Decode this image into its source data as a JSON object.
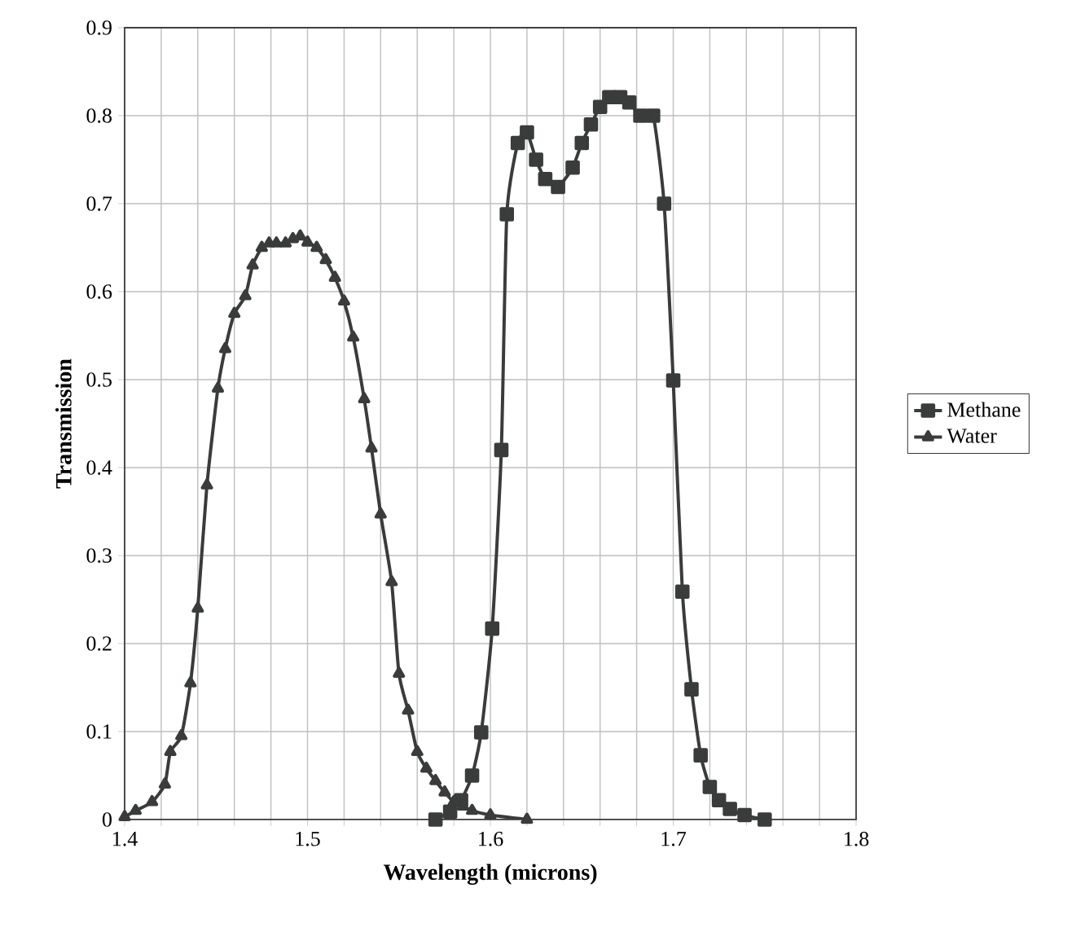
{
  "chart_data": {
    "type": "line",
    "xlabel": "Wavelength (microns)",
    "ylabel": "Transmission",
    "xlim": [
      1.4,
      1.8
    ],
    "ylim": [
      0,
      0.9
    ],
    "xticks": [
      1.4,
      {
        "value": 1.42,
        "label": null
      },
      {
        "value": 1.44,
        "label": null
      },
      {
        "value": 1.46,
        "label": null
      },
      {
        "value": 1.48,
        "label": null
      },
      1.5,
      {
        "value": 1.52,
        "label": null
      },
      {
        "value": 1.54,
        "label": null
      },
      {
        "value": 1.56,
        "label": null
      },
      {
        "value": 1.58,
        "label": null
      },
      1.6,
      {
        "value": 1.62,
        "label": null
      },
      {
        "value": 1.64,
        "label": null
      },
      {
        "value": 1.66,
        "label": null
      },
      {
        "value": 1.68,
        "label": null
      },
      1.7,
      {
        "value": 1.72,
        "label": null
      },
      {
        "value": 1.74,
        "label": null
      },
      {
        "value": 1.76,
        "label": null
      },
      {
        "value": 1.78,
        "label": null
      },
      1.8
    ],
    "yticks": [
      0,
      0.1,
      0.2,
      0.3,
      0.4,
      0.5,
      0.6,
      0.7,
      0.8,
      0.9
    ],
    "grid": true,
    "legend": "right",
    "line_style": "solid",
    "series": [
      {
        "name": "Methane",
        "color": "#3a3c3c",
        "marker": "square",
        "x": [
          1.57,
          1.578,
          1.584,
          1.59,
          1.595,
          1.601,
          1.606,
          1.609,
          1.615,
          1.62,
          1.625,
          1.63,
          1.637,
          1.645,
          1.65,
          1.655,
          1.66,
          1.665,
          1.671,
          1.676,
          1.682,
          1.689,
          1.695,
          1.7,
          1.705,
          1.71,
          1.715,
          1.72,
          1.725,
          1.731,
          1.739,
          1.75
        ],
        "values": [
          0.0,
          0.009,
          0.022,
          0.05,
          0.099,
          0.217,
          0.42,
          0.688,
          0.769,
          0.781,
          0.75,
          0.728,
          0.719,
          0.741,
          0.769,
          0.79,
          0.81,
          0.821,
          0.821,
          0.815,
          0.8,
          0.8,
          0.7,
          0.499,
          0.259,
          0.148,
          0.073,
          0.037,
          0.022,
          0.012,
          0.005,
          0.0
        ]
      },
      {
        "name": "Water",
        "color": "#3a3c3c",
        "marker": "triangle",
        "x": [
          1.4,
          1.406,
          1.415,
          1.422,
          1.425,
          1.431,
          1.436,
          1.44,
          1.445,
          1.451,
          1.455,
          1.46,
          1.466,
          1.47,
          1.475,
          1.479,
          1.483,
          1.488,
          1.492,
          1.496,
          1.5,
          1.505,
          1.51,
          1.515,
          1.52,
          1.525,
          1.531,
          1.535,
          1.54,
          1.546,
          1.55,
          1.555,
          1.56,
          1.565,
          1.57,
          1.575,
          1.58,
          1.585,
          1.59,
          1.6,
          1.62
        ],
        "values": [
          0.003,
          0.01,
          0.02,
          0.04,
          0.077,
          0.095,
          0.155,
          0.24,
          0.38,
          0.49,
          0.535,
          0.575,
          0.595,
          0.63,
          0.65,
          0.655,
          0.655,
          0.655,
          0.66,
          0.663,
          0.656,
          0.65,
          0.636,
          0.616,
          0.589,
          0.548,
          0.478,
          0.422,
          0.347,
          0.27,
          0.166,
          0.124,
          0.077,
          0.058,
          0.044,
          0.031,
          0.02,
          0.015,
          0.01,
          0.005,
          0.0
        ]
      }
    ]
  }
}
